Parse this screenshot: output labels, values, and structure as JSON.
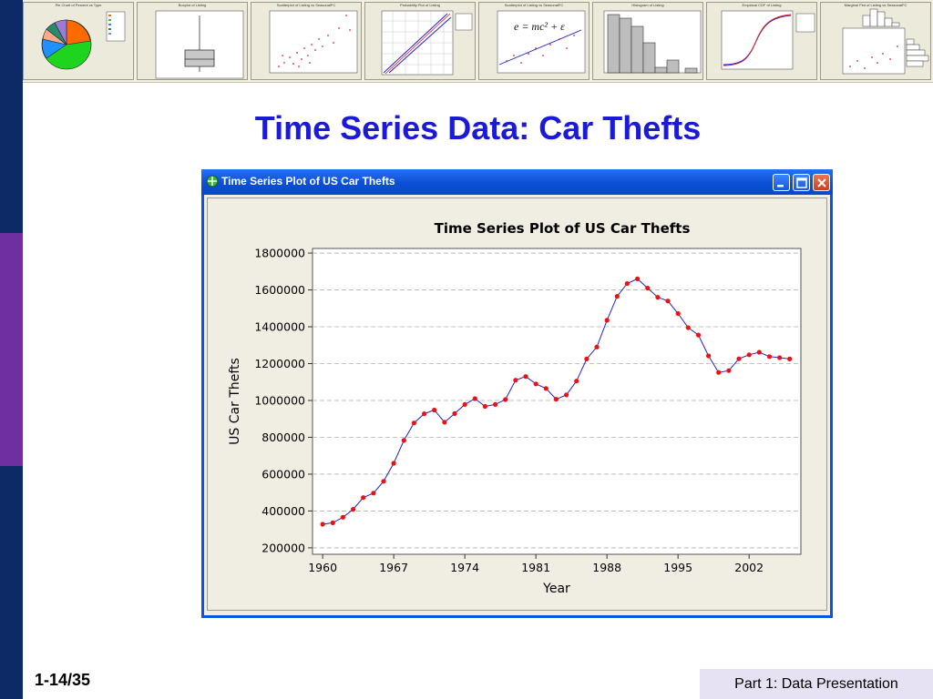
{
  "slide": {
    "title": "Time Series Data: Car Thefts",
    "page_number": "1-14/35",
    "section": "Part 1: Data Presentation"
  },
  "colors": {
    "title": "#1a1ad8",
    "titlebar": "#0b4fd6",
    "series_line": "#2222cc",
    "series_marker": "#ee1111",
    "left_bar": "#0d2a66",
    "left_bar_band": "#6f2fa0"
  },
  "thumbnails": [
    {
      "title": "Pie Chart of Percent vs Type",
      "kind": "pie"
    },
    {
      "title": "Boxplot of Listing",
      "kind": "boxplot"
    },
    {
      "title": "Scatterplot of Listing vs SeasonalFC",
      "kind": "scatter"
    },
    {
      "title": "Probability Plot of Listing",
      "kind": "probability"
    },
    {
      "title": "Scatterplot of Listing vs SeasonalFC",
      "kind": "regression",
      "formula": "e = mc² + ε"
    },
    {
      "title": "Histogram of Listing",
      "kind": "histogram"
    },
    {
      "title": "Empirical CDF of Listing",
      "kind": "ecdf"
    },
    {
      "title": "Marginal Plot of Listing vs SeasonalFC",
      "kind": "marginal"
    }
  ],
  "window": {
    "title": "Time Series Plot of US Car Thefts",
    "icon": "app-icon",
    "buttons": [
      "minimize-icon",
      "maximize-icon",
      "close-icon"
    ]
  },
  "chart_data": {
    "type": "line",
    "title": "Time Series Plot of US Car Thefts",
    "xlabel": "Year",
    "ylabel": "US Car Thefts",
    "x_tick_labels": [
      "1960",
      "1967",
      "1974",
      "1981",
      "1988",
      "1995",
      "2002"
    ],
    "y_tick_labels": [
      "200000",
      "400000",
      "600000",
      "800000",
      "1000000",
      "1200000",
      "1400000",
      "1600000",
      "1800000"
    ],
    "xlim": [
      1959,
      2007.1
    ],
    "ylim": [
      165000,
      1825000
    ],
    "grid": "horizontal dashed",
    "markers": true,
    "series": [
      {
        "x": [
          1960,
          1961,
          1962,
          1963,
          1964,
          1965,
          1966,
          1967,
          1968,
          1969,
          1970,
          1971,
          1972,
          1973,
          1974,
          1975,
          1976,
          1977,
          1978,
          1979,
          1980,
          1981,
          1982,
          1983,
          1984,
          1985,
          1986,
          1987,
          1988,
          1989,
          1990,
          1991,
          1992,
          1993,
          1994,
          1995,
          1996,
          1997,
          1998,
          1999,
          2000,
          2001,
          2002,
          2003,
          2004,
          2005,
          2006
        ],
        "y": [
          328000,
          336000,
          366000,
          409000,
          473000,
          497000,
          561000,
          659000,
          783000,
          878000,
          928000,
          948000,
          882000,
          929000,
          978000,
          1010000,
          968000,
          978000,
          1005000,
          1110000,
          1130000,
          1090000,
          1065000,
          1007000,
          1030000,
          1105000,
          1225000,
          1290000,
          1435000,
          1565000,
          1635000,
          1660000,
          1610000,
          1560000,
          1540000,
          1472000,
          1395000,
          1355000,
          1242000,
          1152000,
          1162000,
          1226000,
          1248000,
          1262000,
          1238000,
          1232000,
          1225000
        ]
      }
    ]
  }
}
